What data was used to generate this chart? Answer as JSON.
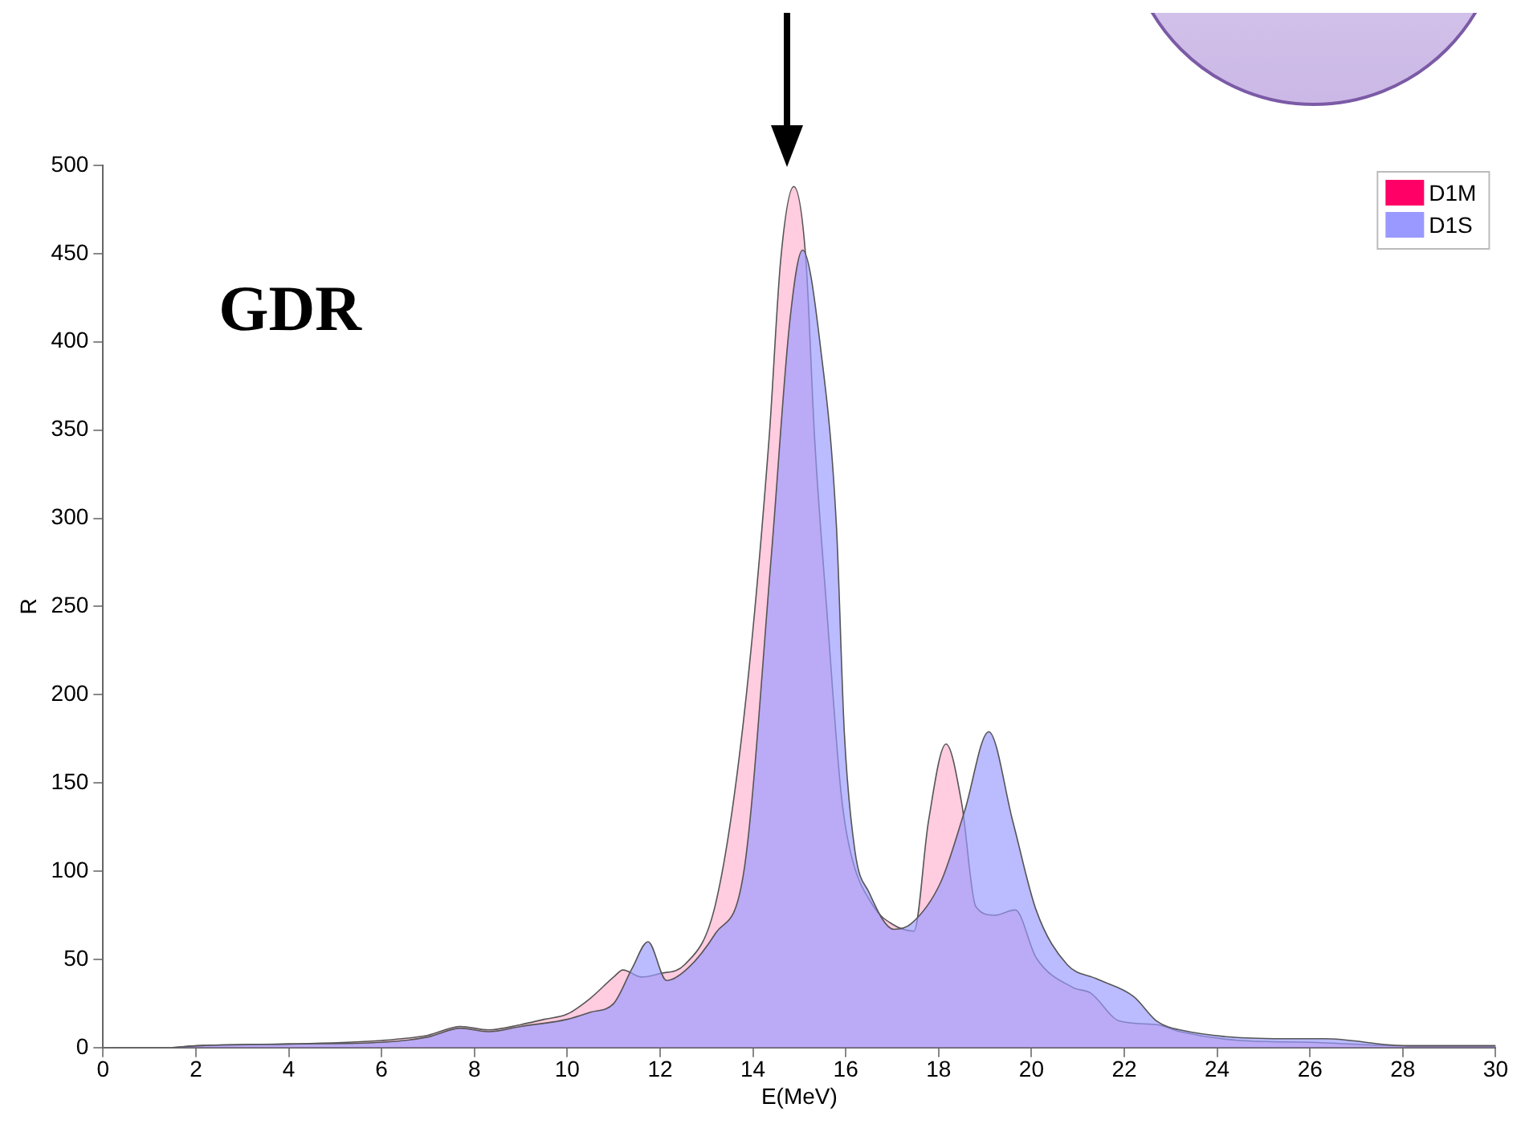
{
  "chart_data": {
    "type": "area",
    "xlabel": "E(MeV)",
    "ylabel": "R",
    "annotations": [
      "GDR"
    ],
    "legend": "top right",
    "grid": false,
    "xlim": [
      0,
      30
    ],
    "xticks": [
      0,
      2,
      4,
      6,
      8,
      10,
      12,
      14,
      16,
      18,
      20,
      22,
      24,
      26,
      28,
      30
    ],
    "ylim": [
      0,
      500
    ],
    "yticks": [
      0,
      50,
      100,
      150,
      200,
      250,
      300,
      350,
      400,
      450,
      500
    ],
    "series": [
      {
        "name": "D1M",
        "color": "#ff0066",
        "x": [
          1.5,
          2,
          4,
          6,
          7,
          7.7,
          8.3,
          9,
          9.5,
          10,
          10.5,
          11,
          11.2,
          11.6,
          12,
          12.53,
          13.2,
          13.8,
          14.35,
          14.6,
          14.88,
          15.14,
          15.33,
          15.6,
          15.9,
          16.1,
          16.6,
          17,
          17.47,
          17.78,
          18.16,
          18.5,
          18.8,
          19.2,
          19.65,
          20.1,
          20.9,
          21.27,
          21.9,
          22.7,
          23.2,
          24.5,
          26,
          28,
          30
        ],
        "values": [
          0,
          1,
          2,
          4,
          7,
          12,
          10,
          13,
          16,
          19,
          28,
          40,
          44,
          40,
          42,
          47,
          82,
          186,
          346,
          447,
          488,
          447,
          345,
          245,
          144,
          111,
          80,
          70,
          66,
          128,
          172,
          138,
          80,
          75,
          78,
          51,
          34,
          31,
          15,
          13,
          9,
          4,
          3,
          1,
          1
        ]
      },
      {
        "name": "D1S",
        "color": "#9999ff",
        "x": [
          1.5,
          2,
          4,
          6,
          7,
          7.7,
          8.3,
          9,
          10,
          10.5,
          11,
          11.4,
          11.74,
          12.14,
          12.6,
          13.2,
          13.8,
          14.4,
          14.8,
          15.07,
          15.46,
          15.8,
          15.97,
          16.2,
          16.5,
          17.04,
          17.4,
          18.05,
          18.56,
          19.08,
          19.6,
          20.1,
          20.77,
          21.4,
          22.2,
          22.7,
          23.2,
          25.8,
          26.3,
          28.1,
          30
        ],
        "values": [
          0,
          1,
          2,
          3,
          6,
          11,
          9,
          12,
          16,
          20,
          25,
          45,
          60,
          38,
          45,
          65,
          99,
          280,
          413,
          452,
          396,
          295,
          178,
          111,
          88,
          67,
          70,
          94,
          134,
          179,
          128,
          78,
          47,
          39,
          29,
          15,
          10,
          5,
          5,
          1,
          1
        ]
      }
    ]
  }
}
